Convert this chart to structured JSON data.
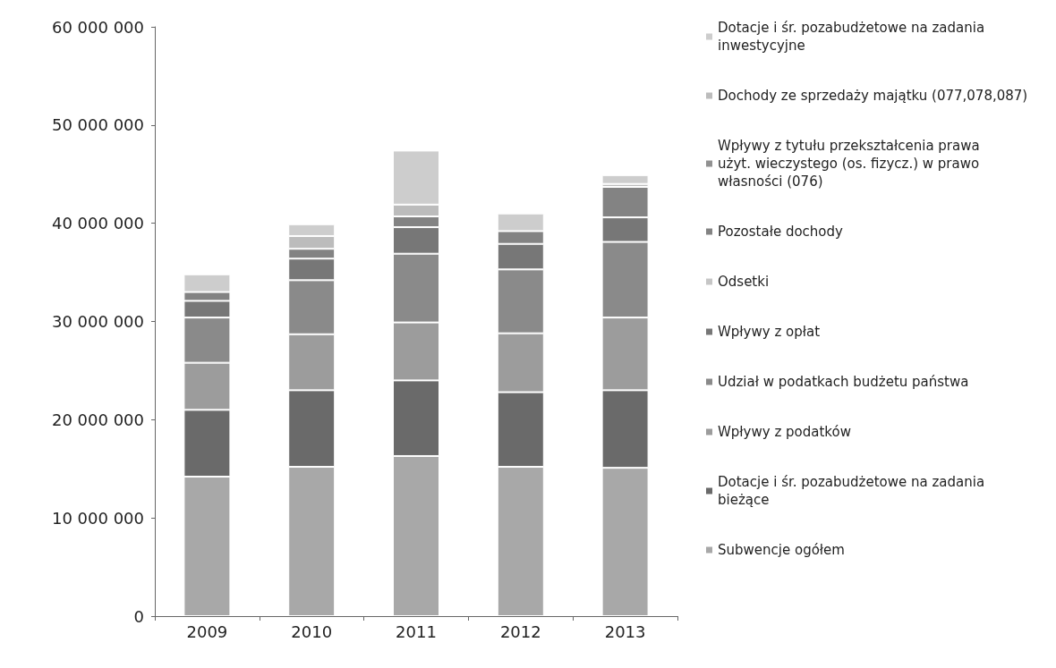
{
  "chart_data": {
    "type": "bar",
    "stacked": true,
    "categories": [
      "2009",
      "2010",
      "2011",
      "2012",
      "2013"
    ],
    "series": [
      {
        "name": "Subwencje ogółem",
        "color": "#a8a8a8",
        "values": [
          14200000,
          15200000,
          16300000,
          15200000,
          15100000
        ]
      },
      {
        "name": "Dotacje i śr. pozabudżetowe na zadania bieżące",
        "color": "#6a6a6a",
        "values": [
          6800000,
          7800000,
          7700000,
          7600000,
          7900000
        ]
      },
      {
        "name": "Wpływy z podatków",
        "color": "#9c9c9c",
        "values": [
          4800000,
          5700000,
          5900000,
          6000000,
          7400000
        ]
      },
      {
        "name": "Udział w podatkach budżetu państwa",
        "color": "#8a8a8a",
        "values": [
          4600000,
          5500000,
          7000000,
          6500000,
          7700000
        ]
      },
      {
        "name": "Wpływy z opłat",
        "color": "#777777",
        "values": [
          1700000,
          2200000,
          2700000,
          2600000,
          2500000
        ]
      },
      {
        "name": "Odsetki",
        "color": "#c6c6c6",
        "values": [
          null,
          null,
          null,
          null,
          null
        ]
      },
      {
        "name": "Pozostałe dochody",
        "color": "#838383",
        "values": [
          900000,
          1000000,
          1100000,
          1300000,
          3100000
        ]
      },
      {
        "name": "Wpływy z tytułu przekształcenia prawa użyt. wieczystego (os. fizycz.) w prawo własności (076)",
        "color": "#919191",
        "values": [
          null,
          null,
          null,
          null,
          null
        ]
      },
      {
        "name": "Dochody ze sprzedaży majątku (077,078,087)",
        "color": "#bcbcbc",
        "values": [
          null,
          1300000,
          1200000,
          null,
          300000
        ]
      },
      {
        "name": "Dotacje i śr. pozabudżetowe na zadania inwestycyjne",
        "color": "#cdcdcd",
        "values": [
          1800000,
          1200000,
          5500000,
          1800000,
          900000
        ]
      }
    ],
    "ylim": [
      0,
      60000000
    ],
    "yticks": [
      {
        "value": 0,
        "label": "0"
      },
      {
        "value": 10000000,
        "label": "10 000 000"
      },
      {
        "value": 20000000,
        "label": "20 000 000"
      },
      {
        "value": 30000000,
        "label": "30 000 000"
      },
      {
        "value": 40000000,
        "label": "40 000 000"
      },
      {
        "value": 50000000,
        "label": "50 000 000"
      },
      {
        "value": 60000000,
        "label": "60 000 000"
      }
    ],
    "grid": false,
    "legend": "right"
  }
}
